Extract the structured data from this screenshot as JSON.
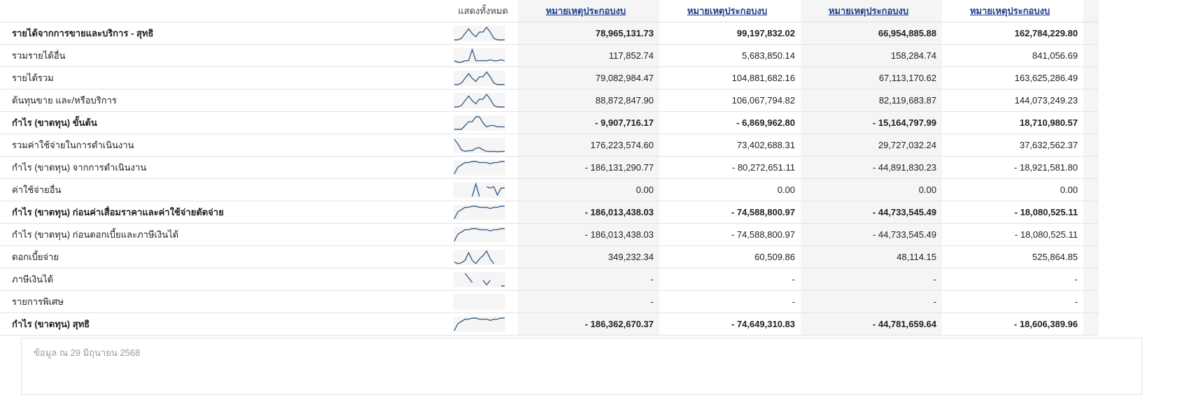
{
  "header": {
    "show_all": "แสดงทั้งหมด",
    "columns": [
      "หมายเหตุประกอบงบ",
      "หมายเหตุประกอบงบ",
      "หมายเหตุประกอบงบ",
      "หมายเหตุประกอบงบ"
    ]
  },
  "sparkline_color": "#3d6188",
  "rows": [
    {
      "label": "รายได้จากการขายและบริการ - สุทธิ",
      "bold": true,
      "values": [
        "78,965,131.73",
        "99,197,832.02",
        "66,954,885.88",
        "162,784,229.80"
      ],
      "spark": [
        1,
        1,
        2,
        5,
        8,
        5,
        3,
        6,
        6,
        9,
        6,
        2,
        1,
        1,
        1
      ]
    },
    {
      "label": "รวมรายได้อื่น",
      "bold": false,
      "values": [
        "117,852.74",
        "5,683,850.14",
        "158,284.74",
        "841,056.69"
      ],
      "spark": [
        1,
        0,
        0,
        1,
        1,
        8,
        1,
        1,
        1,
        1,
        1.5,
        1,
        1,
        1.5,
        1
      ]
    },
    {
      "label": "รายได้รวม",
      "bold": false,
      "values": [
        "79,082,984.47",
        "104,881,682.16",
        "67,113,170.62",
        "163,625,286.49"
      ],
      "spark": [
        1,
        1,
        2,
        5,
        8,
        5,
        3,
        6,
        6,
        9,
        6,
        2,
        1,
        1,
        1
      ]
    },
    {
      "label": "ต้นทุนขาย และ/หรือบริการ",
      "bold": false,
      "values": [
        "88,872,847.90",
        "106,067,794.82",
        "82,119,683.87",
        "144,073,249.23"
      ],
      "spark": [
        1,
        1,
        2,
        5,
        8,
        5,
        3,
        6,
        6,
        9,
        6,
        2,
        1,
        1,
        1
      ]
    },
    {
      "label": "กำไร (ขาดทุน) ขั้นต้น",
      "bold": true,
      "values": [
        "- 9,907,716.17",
        "- 6,869,962.80",
        "- 15,164,797.99",
        "18,710,980.57"
      ],
      "spark": [
        4,
        4,
        4,
        4.3,
        4.6,
        4.6,
        5,
        5,
        4.5,
        4.2,
        4.3,
        4.3,
        4.2,
        4.2,
        4.2
      ]
    },
    {
      "label": "รวมค่าใช้จ่ายในการดำเนินงาน",
      "bold": false,
      "values": [
        "176,223,574.60",
        "73,402,688.31",
        "29,727,032.24",
        "37,632,562.37"
      ],
      "spark": [
        9,
        6,
        2,
        1,
        1.5,
        1.5,
        3,
        3.5,
        2,
        1,
        1,
        1,
        0.8,
        1,
        1
      ]
    },
    {
      "label": "กำไร (ขาดทุน) จากการดำเนินงาน",
      "bold": false,
      "values": [
        "- 186,131,290.77",
        "- 80,272,651.11",
        "- 44,891,830.23",
        "- 18,921,581.80"
      ],
      "spark": [
        3,
        3.6,
        3.8,
        4,
        4,
        4.1,
        4.1,
        4,
        4,
        4,
        3.9,
        4,
        4,
        4.1,
        4.1
      ]
    },
    {
      "label": "ค่าใช้จ่ายอื่น",
      "bold": false,
      "values": [
        "0.00",
        "0.00",
        "0.00",
        "0.00"
      ],
      "spark": [
        null,
        null,
        null,
        null,
        null,
        0,
        9,
        0,
        null,
        7,
        6,
        7,
        1,
        6,
        6
      ]
    },
    {
      "label": "กำไร (ขาดทุน) ก่อนค่าเสื่อมราคาและค่าใช้จ่ายตัดจ่าย",
      "bold": true,
      "values": [
        "- 186,013,438.03",
        "- 74,588,800.97",
        "- 44,733,545.49",
        "- 18,080,525.11"
      ],
      "spark": [
        3,
        3.6,
        3.8,
        4,
        4,
        4.1,
        4.1,
        4,
        4,
        4,
        3.9,
        4,
        4,
        4.1,
        4.1
      ]
    },
    {
      "label": "กำไร (ขาดทุน) ก่อนดอกเบี้ยและภาษีเงินได้",
      "bold": false,
      "values": [
        "- 186,013,438.03",
        "- 74,588,800.97",
        "- 44,733,545.49",
        "- 18,080,525.11"
      ],
      "spark": [
        3,
        3.6,
        3.8,
        4,
        4,
        4.1,
        4.1,
        4,
        4,
        4,
        3.9,
        4,
        4,
        4.1,
        4.1
      ]
    },
    {
      "label": "ดอกเบี้ยจ่าย",
      "bold": false,
      "values": [
        "349,232.34",
        "60,509.86",
        "48,114.15",
        "525,864.85"
      ],
      "spark": [
        2,
        1,
        1.5,
        3,
        8,
        3,
        1,
        4,
        6,
        9,
        4,
        1,
        null,
        null,
        null
      ]
    },
    {
      "label": "ภาษีเงินได้",
      "bold": false,
      "values": [
        "-",
        "-",
        "-",
        "-"
      ],
      "spark": [
        null,
        null,
        null,
        7,
        5,
        3,
        null,
        null,
        4,
        2,
        4,
        null,
        null,
        1.5,
        1.5
      ]
    },
    {
      "label": "รายการพิเศษ",
      "bold": false,
      "values": [
        "-",
        "-",
        "-",
        "-"
      ],
      "spark": []
    },
    {
      "label": "กำไร (ขาดทุน) สุทธิ",
      "bold": true,
      "values": [
        "- 186,362,670.37",
        "- 74,649,310.83",
        "- 44,781,659.64",
        "- 18,606,389.96"
      ],
      "spark": [
        3,
        3.6,
        3.8,
        4,
        4,
        4.1,
        4.1,
        4,
        4,
        4,
        3.9,
        4,
        4,
        4.1,
        4.1
      ]
    }
  ],
  "footer": {
    "as_of": "ข้อมูล ณ 29 มิถุนายน 2568"
  }
}
